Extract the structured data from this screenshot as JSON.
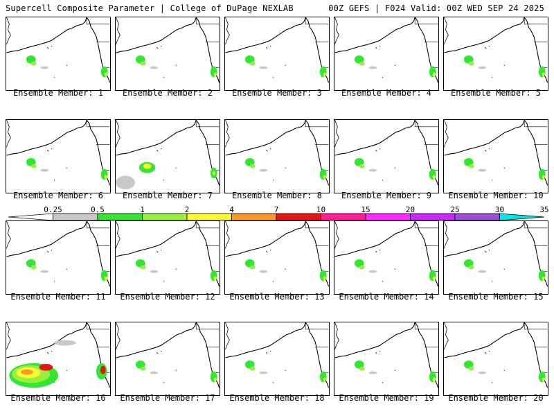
{
  "header": {
    "left_title": "Supercell Composite Parameter | College of DuPage NEXLAB",
    "right_title": "00Z GEFS | F024 Valid: 00Z WED SEP 24 2025"
  },
  "members": [
    {
      "label": "Ensemble Member: 1",
      "activity": "low"
    },
    {
      "label": "Ensemble Member: 2",
      "activity": "low"
    },
    {
      "label": "Ensemble Member: 3",
      "activity": "low"
    },
    {
      "label": "Ensemble Member: 4",
      "activity": "low"
    },
    {
      "label": "Ensemble Member: 5",
      "activity": "low"
    },
    {
      "label": "Ensemble Member: 6",
      "activity": "low"
    },
    {
      "label": "Ensemble Member: 7",
      "activity": "medium"
    },
    {
      "label": "Ensemble Member: 8",
      "activity": "low"
    },
    {
      "label": "Ensemble Member: 9",
      "activity": "low"
    },
    {
      "label": "Ensemble Member: 10",
      "activity": "low"
    },
    {
      "label": "Ensemble Member: 11",
      "activity": "low"
    },
    {
      "label": "Ensemble Member: 12",
      "activity": "low"
    },
    {
      "label": "Ensemble Member: 13",
      "activity": "low"
    },
    {
      "label": "Ensemble Member: 14",
      "activity": "low"
    },
    {
      "label": "Ensemble Member: 15",
      "activity": "low"
    },
    {
      "label": "Ensemble Member: 16",
      "activity": "high"
    },
    {
      "label": "Ensemble Member: 17",
      "activity": "low"
    },
    {
      "label": "Ensemble Member: 18",
      "activity": "low"
    },
    {
      "label": "Ensemble Member: 19",
      "activity": "low"
    },
    {
      "label": "Ensemble Member: 20",
      "activity": "low"
    }
  ],
  "colorbar": {
    "labels": [
      "0.25",
      "0.5",
      "1",
      "2",
      "4",
      "7",
      "10",
      "15",
      "20",
      "25",
      "30",
      "35"
    ],
    "colors": [
      "#ffffff",
      "#c8c8c8",
      "#32e632",
      "#96f03c",
      "#fafa32",
      "#ff9628",
      "#e61414",
      "#ff1e96",
      "#ff28ff",
      "#c828ff",
      "#9a4fd8",
      "#00e6e6"
    ]
  }
}
